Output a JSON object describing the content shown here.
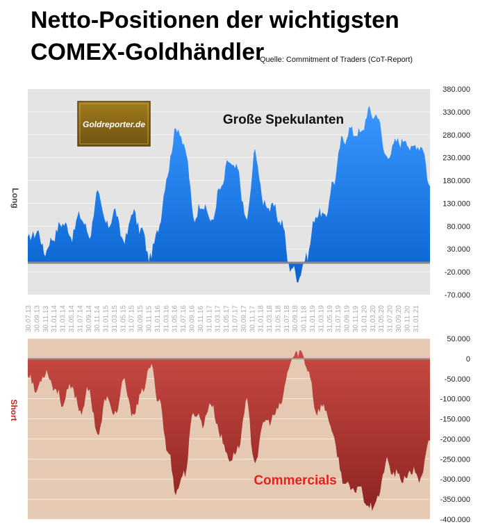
{
  "title_line1": "Netto-Positionen der wichtigsten",
  "title_line2": "COMEX-Goldhändler",
  "source": "Quelle: Commitment of Traders (CoT-Report)",
  "logo_text": "Goldreporter.de",
  "colors": {
    "top_bg": "#e4e4e4",
    "bottom_bg": "#e6c9b2",
    "speculators": "#1a7ff0",
    "commercials": "#b53a34",
    "commercials_label": "#e4221b",
    "short_label": "#c0241e",
    "logo_bg": "#8a6a16"
  },
  "chart_data": [
    {
      "type": "area",
      "series": [
        {
          "name": "Große Spekulanten"
        }
      ],
      "ylabel": "Long",
      "ylim": [
        -70000,
        380000
      ],
      "yticks": [
        "380.000",
        "330.000",
        "280.000",
        "230.000",
        "180.000",
        "130.000",
        "80.000",
        "30.000",
        "-20.000",
        "-70.000"
      ],
      "x_categories": [
        "30.07.13",
        "30.09.13",
        "30.11.13",
        "31.01.14",
        "31.03.14",
        "31.05.14",
        "31.07.14",
        "30.09.14",
        "30.11.14",
        "31.01.15",
        "31.03.15",
        "31.05.15",
        "31.07.15",
        "30.09.15",
        "30.11.15",
        "31.01.16",
        "31.03.16",
        "31.05.16",
        "31.07.16",
        "30.09.16",
        "30.11.16",
        "31.01.17",
        "31.03.17",
        "31.05.17",
        "31.07.17",
        "30.09.17",
        "30.11.17",
        "31.01.18",
        "31.03.18",
        "31.05.18",
        "31.07.18",
        "30.09.18",
        "30.11.18",
        "31.01.19",
        "31.03.19",
        "31.05.19",
        "31.07.19",
        "30.09.19",
        "30.11.19",
        "31.01.20",
        "31.03.20",
        "31.05.20",
        "31.07.20",
        "30.09.20",
        "30.11.20",
        "31.01.21"
      ],
      "x": [
        "2013-07",
        "2013-09",
        "2013-11",
        "2014-01",
        "2014-03",
        "2014-05",
        "2014-07",
        "2014-09",
        "2014-11",
        "2015-01",
        "2015-03",
        "2015-05",
        "2015-07",
        "2015-09",
        "2015-11",
        "2016-01",
        "2016-03",
        "2016-05",
        "2016-07",
        "2016-09",
        "2016-11",
        "2017-01",
        "2017-03",
        "2017-05",
        "2017-07",
        "2017-09",
        "2017-11",
        "2018-01",
        "2018-03",
        "2018-05",
        "2018-07",
        "2018-09",
        "2018-11",
        "2019-01",
        "2019-03",
        "2019-05",
        "2019-07",
        "2019-09",
        "2019-11",
        "2020-01",
        "2020-03",
        "2020-05",
        "2020-07",
        "2020-09",
        "2020-11",
        "2021-01",
        "2021-02"
      ],
      "values": [
        48000,
        70000,
        25000,
        60000,
        90000,
        60000,
        105000,
        60000,
        150000,
        80000,
        110000,
        45000,
        110000,
        70000,
        10000,
        80000,
        200000,
        300000,
        250000,
        100000,
        130000,
        90000,
        160000,
        220000,
        200000,
        90000,
        240000,
        130000,
        120000,
        90000,
        -10000,
        -30000,
        20000,
        110000,
        100000,
        180000,
        270000,
        290000,
        280000,
        330000,
        320000,
        230000,
        260000,
        270000,
        250000,
        260000,
        170000
      ]
    },
    {
      "type": "area",
      "series": [
        {
          "name": "Commercials"
        }
      ],
      "ylabel": "Short",
      "ylim": [
        -400000,
        50000
      ],
      "yticks": [
        "50.000",
        "0",
        "-50.000",
        "-100.000",
        "-150.000",
        "-200.000",
        "-250.000",
        "-300.000",
        "-350.000",
        "-400.000"
      ],
      "x": [
        "2013-07",
        "2013-09",
        "2013-11",
        "2014-01",
        "2014-03",
        "2014-05",
        "2014-07",
        "2014-09",
        "2014-11",
        "2015-01",
        "2015-03",
        "2015-05",
        "2015-07",
        "2015-09",
        "2015-11",
        "2016-01",
        "2016-03",
        "2016-05",
        "2016-07",
        "2016-09",
        "2016-11",
        "2017-01",
        "2017-03",
        "2017-05",
        "2017-07",
        "2017-09",
        "2017-11",
        "2018-01",
        "2018-03",
        "2018-05",
        "2018-07",
        "2018-09",
        "2018-11",
        "2019-01",
        "2019-03",
        "2019-05",
        "2019-07",
        "2019-09",
        "2019-11",
        "2020-01",
        "2020-03",
        "2020-05",
        "2020-07",
        "2020-09",
        "2020-11",
        "2021-01",
        "2021-02"
      ],
      "values": [
        -40000,
        -80000,
        -30000,
        -70000,
        -110000,
        -70000,
        -130000,
        -80000,
        -190000,
        -100000,
        -140000,
        -60000,
        -140000,
        -90000,
        -20000,
        -100000,
        -230000,
        -330000,
        -280000,
        -130000,
        -160000,
        -110000,
        -190000,
        -250000,
        -230000,
        -110000,
        -260000,
        -160000,
        -150000,
        -110000,
        -10000,
        20000,
        -20000,
        -130000,
        -120000,
        -200000,
        -300000,
        -330000,
        -320000,
        -370000,
        -350000,
        -260000,
        -290000,
        -300000,
        -280000,
        -300000,
        -200000
      ]
    }
  ]
}
